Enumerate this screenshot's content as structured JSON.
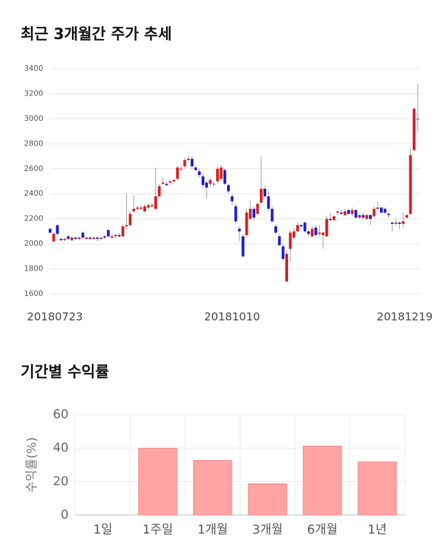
{
  "chart_data": [
    {
      "type": "candlestick",
      "title": "최근 3개월간 주가 추세",
      "categories": [
        "20180723",
        null,
        null,
        null,
        null,
        null,
        null,
        null,
        null,
        null,
        null,
        null,
        null,
        null,
        null,
        null,
        null,
        null,
        null,
        null,
        null,
        null,
        null,
        null,
        null,
        null,
        null,
        null,
        null,
        null,
        null,
        null,
        null,
        null,
        null,
        null,
        null,
        null,
        null,
        null,
        null,
        null,
        null,
        null,
        null,
        null,
        null,
        null,
        null,
        null,
        "20181010",
        null,
        null,
        null,
        null,
        null,
        null,
        null,
        null,
        null,
        null,
        null,
        null,
        null,
        null,
        null,
        null,
        null,
        null,
        null,
        null,
        null,
        null,
        null,
        null,
        null,
        null,
        null,
        null,
        null,
        null,
        null,
        null,
        null,
        null,
        null,
        null,
        null,
        null,
        null,
        null,
        null,
        null,
        null,
        null,
        null,
        null,
        null,
        null,
        null,
        null,
        "20181219"
      ],
      "open": [
        2120,
        2020,
        2150,
        2040,
        2030,
        2060,
        2030,
        2050,
        2040,
        2090,
        2040,
        2050,
        2040,
        2050,
        2040,
        2060,
        2110,
        2050,
        2060,
        2070,
        2060,
        2140,
        2150,
        2260,
        2280,
        2280,
        2260,
        2290,
        2300,
        2280,
        2380,
        2480,
        2480,
        2490,
        2500,
        2520,
        2600,
        2620,
        2670,
        2680,
        2610,
        2580,
        2540,
        2490,
        2480,
        2480,
        2500,
        2520,
        2590,
        2470,
        2380,
        2300,
        2120,
        2060,
        2070,
        2200,
        2280,
        2240,
        2330,
        2440,
        2380,
        2280,
        2140,
        2060,
        1980,
        1700,
        1960,
        2050,
        2100,
        2150,
        2170,
        2100,
        2060,
        2130,
        2080,
        2070,
        2060,
        2200,
        2190,
        2250,
        2250,
        2230,
        2270,
        2240,
        2270,
        2210,
        2230,
        2200,
        2230,
        2220,
        2280,
        2290,
        2280,
        2240,
        2170,
        2160,
        2170,
        2160,
        2210,
        2240,
        2750,
        3000
      ],
      "close": [
        2090,
        2080,
        2080,
        2030,
        2040,
        2040,
        2050,
        2040,
        2050,
        2050,
        2050,
        2040,
        2050,
        2040,
        2050,
        2050,
        2060,
        2060,
        2070,
        2060,
        2140,
        2150,
        2240,
        2280,
        2290,
        2290,
        2300,
        2310,
        2310,
        2380,
        2460,
        2490,
        2470,
        2500,
        2510,
        2610,
        2600,
        2670,
        2680,
        2620,
        2590,
        2550,
        2470,
        2450,
        2510,
        2480,
        2600,
        2610,
        2480,
        2420,
        2340,
        2180,
        2100,
        1900,
        2250,
        2280,
        2210,
        2320,
        2440,
        2380,
        2280,
        2180,
        2090,
        1990,
        1880,
        1920,
        2090,
        2100,
        2150,
        2140,
        2100,
        2080,
        2120,
        2070,
        2090,
        2090,
        2200,
        2190,
        2220,
        2260,
        2240,
        2260,
        2240,
        2270,
        2210,
        2230,
        2210,
        2230,
        2200,
        2280,
        2290,
        2250,
        2250,
        2230,
        2160,
        2170,
        2160,
        2180,
        2230,
        2710,
        3080,
        3000
      ],
      "high": [
        2130,
        2090,
        2150,
        2050,
        2050,
        2070,
        2060,
        2060,
        2060,
        2100,
        2060,
        2060,
        2060,
        2060,
        2050,
        2070,
        2120,
        2080,
        2080,
        2090,
        2160,
        2400,
        2260,
        2390,
        2300,
        2310,
        2320,
        2320,
        2330,
        2610,
        2480,
        2530,
        2500,
        2510,
        2520,
        2620,
        2620,
        2690,
        2710,
        2700,
        2630,
        2600,
        2560,
        2500,
        2530,
        2500,
        2620,
        2630,
        2600,
        2480,
        2400,
        2320,
        2140,
        2080,
        2280,
        2350,
        2300,
        2330,
        2700,
        2460,
        2420,
        2300,
        2160,
        2080,
        2000,
        1940,
        2110,
        2120,
        2170,
        2160,
        2180,
        2110,
        2140,
        2150,
        2150,
        2100,
        2220,
        2250,
        2230,
        2260,
        2270,
        2280,
        2280,
        2290,
        2280,
        2240,
        2250,
        2240,
        2240,
        2300,
        2340,
        2300,
        2290,
        2250,
        2180,
        2200,
        2180,
        2250,
        2240,
        2760,
        3090,
        3280
      ],
      "low": [
        2080,
        2010,
        2070,
        2020,
        2020,
        2030,
        2020,
        2030,
        2030,
        2040,
        2030,
        2030,
        2030,
        2020,
        2030,
        2040,
        2050,
        2040,
        2050,
        2050,
        2050,
        2120,
        2140,
        2250,
        2270,
        2270,
        2250,
        2280,
        2290,
        2270,
        2370,
        2470,
        2460,
        2470,
        2480,
        2510,
        2580,
        2600,
        2660,
        2600,
        2580,
        2530,
        2440,
        2360,
        2450,
        2450,
        2480,
        2510,
        2470,
        2400,
        2310,
        2160,
        2020,
        1890,
        2050,
        2190,
        2190,
        2230,
        2320,
        2360,
        2260,
        2170,
        2080,
        1980,
        1860,
        1690,
        1860,
        2040,
        2090,
        2130,
        2090,
        2060,
        2050,
        2060,
        2060,
        1960,
        2050,
        2180,
        2180,
        2230,
        2230,
        2220,
        2230,
        2220,
        2200,
        2200,
        2190,
        2190,
        2150,
        2210,
        2270,
        2240,
        2240,
        2210,
        2100,
        2150,
        2120,
        2130,
        2200,
        2230,
        2740,
        2890
      ],
      "up_color": "#d91c1c",
      "down_color": "#1c1ccc",
      "ylim": [
        1600,
        3400
      ],
      "yticks": [
        1600,
        1800,
        2000,
        2200,
        2400,
        2600,
        2800,
        3000,
        3200,
        3400
      ],
      "grid": true
    },
    {
      "type": "bar",
      "title": "기간별 수익률",
      "ylabel": "수익률(%)",
      "categories": [
        "1일",
        "1주일",
        "1개월",
        "3개월",
        "6개월",
        "1년"
      ],
      "values": [
        0,
        40,
        32.7,
        18.7,
        41.3,
        31.8
      ],
      "color": "#ffa3a3",
      "ylim": [
        0,
        60
      ],
      "yticks": [
        0,
        20,
        40,
        60
      ],
      "grid": true
    }
  ]
}
